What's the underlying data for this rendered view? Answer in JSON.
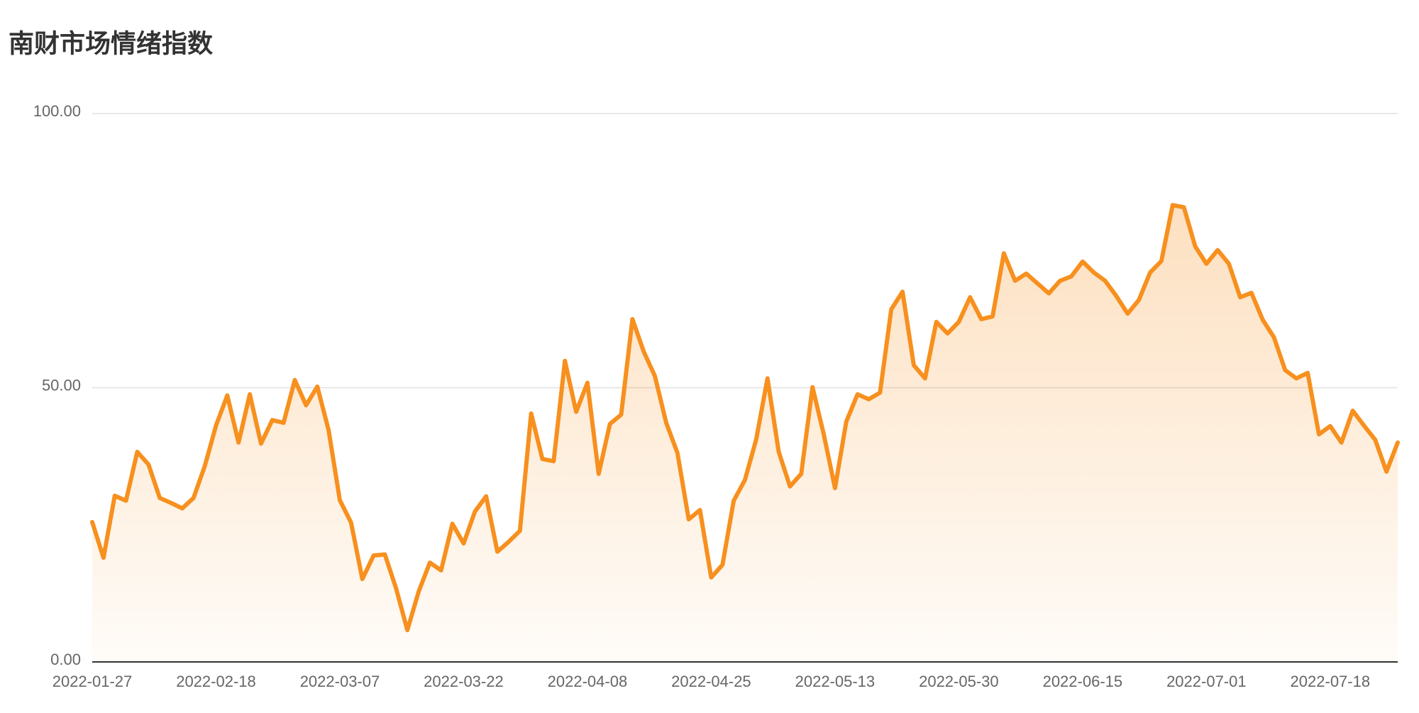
{
  "chart_data": {
    "type": "line",
    "title": "南财市场情绪指数",
    "categories": [
      "2022-01-27",
      null,
      null,
      null,
      null,
      null,
      null,
      null,
      null,
      null,
      null,
      "2022-02-18",
      null,
      null,
      null,
      null,
      null,
      null,
      null,
      null,
      null,
      null,
      "2022-03-07",
      null,
      null,
      null,
      null,
      null,
      null,
      null,
      null,
      null,
      null,
      "2022-03-22",
      null,
      null,
      null,
      null,
      null,
      null,
      null,
      null,
      null,
      null,
      "2022-04-08",
      null,
      null,
      null,
      null,
      null,
      null,
      null,
      null,
      null,
      null,
      "2022-04-25",
      null,
      null,
      null,
      null,
      null,
      null,
      null,
      null,
      null,
      null,
      "2022-05-13",
      null,
      null,
      null,
      null,
      null,
      null,
      null,
      null,
      null,
      null,
      "2022-05-30",
      null,
      null,
      null,
      null,
      null,
      null,
      null,
      null,
      null,
      null,
      "2022-06-15",
      null,
      null,
      null,
      null,
      null,
      null,
      null,
      null,
      null,
      null,
      "2022-07-01",
      null,
      null,
      null,
      null,
      null,
      null,
      null,
      null,
      null,
      null,
      "2022-07-18",
      null,
      null,
      null,
      null,
      null,
      null
    ],
    "values": [
      25.5,
      19,
      30.3,
      29.4,
      38.3,
      36,
      29.9,
      29,
      28,
      29.9,
      35.7,
      43.1,
      48.6,
      40,
      48.8,
      39.8,
      44.1,
      43.6,
      51.4,
      46.8,
      50.2,
      42.3,
      29.5,
      25.4,
      15.1,
      19.4,
      19.6,
      13.4,
      5.8,
      12.8,
      18.1,
      16.7,
      25.2,
      21.6,
      27.4,
      30.2,
      20.1,
      21.9,
      23.9,
      45.3,
      37,
      36.6,
      54.9,
      45.6,
      50.9,
      34.3,
      43.4,
      45.1,
      62.5,
      56.6,
      52.1,
      43.6,
      38.1,
      26,
      27.7,
      15.4,
      17.7,
      29.4,
      33.2,
      40.6,
      51.7,
      38.3,
      32,
      34.3,
      50.1,
      41.5,
      31.7,
      43.8,
      48.8,
      47.9,
      49.1,
      64.3,
      67.5,
      54.1,
      51.7,
      62,
      59.9,
      62,
      66.5,
      62.5,
      63,
      74.5,
      69.5,
      70.8,
      69,
      67.2,
      69.5,
      70.3,
      73,
      71,
      69.5,
      66.7,
      63.5,
      66,
      71,
      73.1,
      83.3,
      82.9,
      75.8,
      72.6,
      75.1,
      72.6,
      66.5,
      67.3,
      62.4,
      59.2,
      53.2,
      51.7,
      52.7,
      41.5,
      43,
      40,
      45.8,
      43.1,
      40.5,
      34.7,
      40
    ],
    "color": "#f7901e",
    "ylim": [
      0,
      100
    ],
    "yticks": [
      {
        "value": 0,
        "label": "0.00"
      },
      {
        "value": 50,
        "label": "50.00"
      },
      {
        "value": 100,
        "label": "100.00"
      }
    ],
    "grid": true
  }
}
